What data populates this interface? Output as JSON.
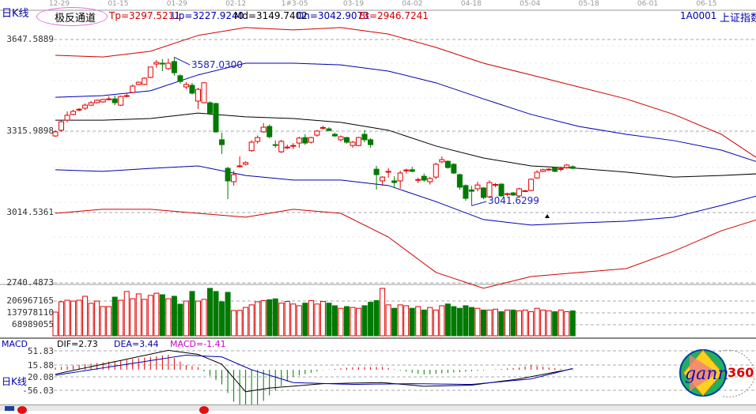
{
  "header": {
    "period_label": "日K线",
    "indicator_name": "极反通道",
    "tp": "Tp=3297.5211",
    "up": "Up=3227.9240",
    "md": "Md=3149.7402",
    "dn": "Dn=3042.9073",
    "bt": "Bt=2946.7241",
    "symbol": "1A0001",
    "symbol_name": "上证指数"
  },
  "colors": {
    "up": "#e00000",
    "down": "#007a00",
    "blue": "#0000b0",
    "upper_band": "#d00000",
    "mid": "#000000",
    "macd_label": "#cc00cc"
  },
  "macd_header": {
    "name": "MACD",
    "dif": "DIF=2.73",
    "dea": "DEA=3.44",
    "macd": "MACD=-1.41"
  },
  "bottom_label": "日K线",
  "logo": {
    "text_a": "gann",
    "text_b": "360"
  },
  "chart_data": [
    {
      "type": "candlestick",
      "x_tick_labels": [
        "12-29",
        "01-15",
        "01-29",
        "02-12",
        "1#3-05",
        "03-19",
        "04-02",
        "04-18",
        "05-04",
        "05-18",
        "06-01",
        "06-15"
      ],
      "y_tick_labels": [
        "3647.5889",
        "3315.9898",
        "3014.5361",
        "2740.4873"
      ],
      "annotations": [
        {
          "text": "3587.0300",
          "candle": 20
        },
        {
          "text": "3041.6299",
          "candle": 70
        }
      ],
      "ohlc": [
        [
          3298,
          3313,
          3319,
          3295
        ],
        [
          3319,
          3350,
          3356,
          3313
        ],
        [
          3356,
          3374,
          3388,
          3348
        ],
        [
          3377,
          3388,
          3394,
          3374
        ],
        [
          3394,
          3396,
          3400,
          3388
        ],
        [
          3400,
          3411,
          3417,
          3394
        ],
        [
          3411,
          3420,
          3426,
          3408
        ],
        [
          3420,
          3429,
          3432,
          3417
        ],
        [
          3423,
          3432,
          3434,
          3420
        ],
        [
          3432,
          3434,
          3443,
          3429
        ],
        [
          3434,
          3420,
          3446,
          3411
        ],
        [
          3411,
          3443,
          3446,
          3408
        ],
        [
          3443,
          3446,
          3455,
          3440
        ],
        [
          3458,
          3481,
          3487,
          3455
        ],
        [
          3487,
          3495,
          3498,
          3484
        ],
        [
          3487,
          3510,
          3513,
          3484
        ],
        [
          3513,
          3551,
          3551,
          3510
        ],
        [
          3562,
          3568,
          3577,
          3548
        ],
        [
          3565,
          3562,
          3580,
          3536
        ],
        [
          3545,
          3565,
          3582,
          3540
        ],
        [
          3571,
          3530,
          3587,
          3519
        ],
        [
          3519,
          3498,
          3525,
          3490
        ],
        [
          3478,
          3487,
          3495,
          3470
        ],
        [
          3484,
          3455,
          3493,
          3450
        ],
        [
          3426,
          3469,
          3475,
          3397
        ],
        [
          3420,
          3493,
          3495,
          3417
        ],
        [
          3420,
          3382,
          3425,
          3375
        ],
        [
          3417,
          3313,
          3420,
          3310
        ],
        [
          3284,
          3266,
          3310,
          3232
        ],
        [
          3179,
          3133,
          3185,
          3066
        ],
        [
          3130,
          3156,
          3170,
          3115
        ],
        [
          3185,
          3188,
          3223,
          3182
        ],
        [
          3194,
          3200,
          3205,
          3190
        ],
        [
          3244,
          3275,
          3282,
          3240
        ],
        [
          3278,
          3292,
          3300,
          3270
        ],
        [
          3313,
          3330,
          3345,
          3310
        ],
        [
          3333,
          3295,
          3340,
          3290
        ],
        [
          3266,
          3264,
          3282,
          3255
        ],
        [
          3240,
          3278,
          3284,
          3235
        ],
        [
          3255,
          3257,
          3266,
          3250
        ],
        [
          3261,
          3263,
          3272,
          3250
        ],
        [
          3272,
          3290,
          3295,
          3255
        ],
        [
          3292,
          3272,
          3305,
          3265
        ],
        [
          3275,
          3292,
          3295,
          3270
        ],
        [
          3301,
          3316,
          3320,
          3295
        ],
        [
          3327,
          3329,
          3335,
          3322
        ],
        [
          3324,
          3318,
          3330,
          3315
        ],
        [
          3304,
          3298,
          3310,
          3295
        ],
        [
          3284,
          3295,
          3300,
          3278
        ],
        [
          3292,
          3275,
          3295,
          3270
        ],
        [
          3263,
          3275,
          3280,
          3255
        ],
        [
          3263,
          3292,
          3295,
          3260
        ],
        [
          3304,
          3284,
          3320,
          3275
        ],
        [
          3284,
          3266,
          3290,
          3255
        ],
        [
          3176,
          3156,
          3188,
          3101
        ],
        [
          3133,
          3147,
          3150,
          3115
        ],
        [
          3165,
          3168,
          3180,
          3145
        ],
        [
          3133,
          3127,
          3150,
          3110
        ],
        [
          3133,
          3162,
          3170,
          3105
        ],
        [
          3171,
          3173,
          3178,
          3160
        ],
        [
          3174,
          3168,
          3185,
          3165
        ],
        [
          3136,
          3138,
          3145,
          3125
        ],
        [
          3150,
          3136,
          3160,
          3130
        ],
        [
          3130,
          3142,
          3148,
          3120
        ],
        [
          3147,
          3194,
          3200,
          3140
        ],
        [
          3203,
          3211,
          3223,
          3198
        ],
        [
          3205,
          3182,
          3208,
          3178
        ],
        [
          3194,
          3162,
          3198,
          3158
        ],
        [
          3156,
          3110,
          3160,
          3100
        ],
        [
          3116,
          3069,
          3120,
          3060
        ],
        [
          3100,
          3095,
          3115,
          3042
        ],
        [
          3104,
          3118,
          3130,
          3095
        ],
        [
          3107,
          3072,
          3110,
          3066
        ],
        [
          3075,
          3127,
          3135,
          3070
        ],
        [
          3118,
          3120,
          3125,
          3110
        ],
        [
          3121,
          3078,
          3125,
          3075
        ],
        [
          3084,
          3086,
          3090,
          3078
        ],
        [
          3089,
          3081,
          3092,
          3078
        ],
        [
          3078,
          3104,
          3108,
          3075
        ],
        [
          3095,
          3097,
          3100,
          3092
        ],
        [
          3098,
          3139,
          3142,
          3095
        ],
        [
          3144,
          3165,
          3172,
          3140
        ],
        [
          3168,
          3174,
          3178,
          3165
        ],
        [
          3174,
          3176,
          3180,
          3170
        ],
        [
          3182,
          3168,
          3185,
          3165
        ],
        [
          3176,
          3178,
          3185,
          3168
        ],
        [
          3182,
          3191,
          3195,
          3178
        ],
        [
          3185,
          3179,
          3190,
          3176
        ]
      ],
      "channel_x": [
        0,
        8,
        16,
        24,
        32,
        40,
        48,
        56,
        64,
        72,
        80,
        88,
        96,
        104,
        112,
        118
      ],
      "channels": [
        {
          "name": "Tp",
          "color": "#d00000",
          "values": [
            3594,
            3588,
            3609,
            3667,
            3696,
            3687,
            3696,
            3672,
            3623,
            3565,
            3522,
            3478,
            3434,
            3377,
            3304,
            3217
          ]
        },
        {
          "name": "Up",
          "color": "#0000b0",
          "values": [
            3440,
            3446,
            3464,
            3522,
            3565,
            3565,
            3559,
            3536,
            3493,
            3434,
            3377,
            3333,
            3304,
            3281,
            3246,
            3203
          ]
        },
        {
          "name": "Md",
          "color": "#000000",
          "values": [
            3356,
            3356,
            3362,
            3382,
            3368,
            3362,
            3348,
            3319,
            3261,
            3217,
            3188,
            3179,
            3165,
            3147,
            3153,
            3159
          ]
        },
        {
          "name": "Dn",
          "color": "#0000b0",
          "values": [
            3174,
            3168,
            3179,
            3188,
            3153,
            3136,
            3136,
            3116,
            3057,
            2991,
            2971,
            2979,
            2985,
            3000,
            3043,
            3078
          ]
        },
        {
          "name": "Bt",
          "color": "#d00000",
          "values": [
            3014,
            3029,
            3029,
            3014,
            3000,
            3029,
            3014,
            2927,
            2797,
            2739,
            2782,
            2797,
            2811,
            2875,
            2950,
            2991
          ]
        }
      ]
    },
    {
      "type": "bar",
      "y_tick_labels": [
        "206967165",
        "137978110",
        "68989055"
      ],
      "volume_millions": [
        138,
        198,
        207,
        202,
        207,
        230,
        189,
        202,
        170,
        170,
        225,
        207,
        258,
        216,
        244,
        212,
        235,
        248,
        239,
        216,
        230,
        184,
        202,
        258,
        202,
        212,
        276,
        258,
        198,
        253,
        147,
        148,
        165,
        180,
        198,
        205,
        210,
        215,
        190,
        200,
        185,
        175,
        190,
        205,
        185,
        200,
        190,
        175,
        160,
        170,
        165,
        160,
        175,
        195,
        205,
        276,
        180,
        160,
        180,
        175,
        160,
        170,
        150,
        165,
        150,
        175,
        185,
        170,
        160,
        175,
        165,
        160,
        150,
        150,
        155,
        140,
        150,
        150,
        145,
        150,
        140,
        160,
        150,
        145,
        140,
        150,
        140,
        145
      ]
    },
    {
      "type": "line",
      "y_tick_labels": [
        "51.83",
        "15.88",
        "-20.08",
        "-56.03"
      ],
      "dif": [
        -12,
        -8.6,
        -5.2,
        -1.8,
        1.6,
        5,
        8.4,
        11.8,
        15.2,
        18.6,
        22,
        25.4,
        28.9,
        32.3,
        35.8,
        39.2,
        42.7,
        46.1,
        49.6,
        53,
        50.8,
        48.6,
        46.4,
        44.2,
        42,
        35.3,
        28.5,
        21.8,
        15,
        -3.8,
        -22.5,
        -41.3,
        -60,
        -57.5,
        -55,
        -52.5,
        -50,
        -48.7,
        -47.3,
        -46,
        -44.7,
        -43.3,
        -42,
        -40.7,
        -39.3,
        -38,
        -37.7,
        -37.4,
        -37.1,
        -36.8,
        -36.5,
        -36.2,
        -35.9,
        -35.6,
        -35.3,
        -35,
        -36.4,
        -37.9,
        -39.3,
        -40.7,
        -42.1,
        -43.6,
        -45,
        -44.6,
        -44.3,
        -43.9,
        -43.5,
        -43.1,
        -42.8,
        -42.4,
        -42,
        -39.9,
        -37.8,
        -35.6,
        -33.5,
        -31.4,
        -29.3,
        -27.1,
        -25,
        -21.9,
        -18.8,
        -15.8,
        -12.7,
        -9.6,
        -6.5,
        -3.4,
        -0.4,
        2.73
      ],
      "dea": [
        -15,
        -12.5,
        -10,
        -7.5,
        -5,
        -2.5,
        0,
        2.5,
        5,
        7.5,
        10,
        12.5,
        15,
        17.5,
        20,
        22.5,
        25,
        27.5,
        30,
        32.5,
        35,
        37.5,
        40,
        39.2,
        38.3,
        37.5,
        36.7,
        35.8,
        35,
        28,
        21,
        14,
        7,
        0,
        -5,
        -10,
        -15,
        -20,
        -25,
        -30,
        -35,
        -35.5,
        -36,
        -36.5,
        -37,
        -37.5,
        -38,
        -38.5,
        -39,
        -39.5,
        -40,
        -39.8,
        -39.6,
        -39.4,
        -39.2,
        -39,
        -38.8,
        -38.6,
        -38.4,
        -38.2,
        -38,
        -38.2,
        -38.4,
        -38.6,
        -38.8,
        -39,
        -39.2,
        -39.4,
        -39.6,
        -39.8,
        -40,
        -38.5,
        -37,
        -35.5,
        -34,
        -32.5,
        -31,
        -29.5,
        -28,
        -26.5,
        -25,
        -20.9,
        -16.9,
        -12.8,
        -8.8,
        -4.7,
        -0.6,
        3.44
      ]
    }
  ]
}
